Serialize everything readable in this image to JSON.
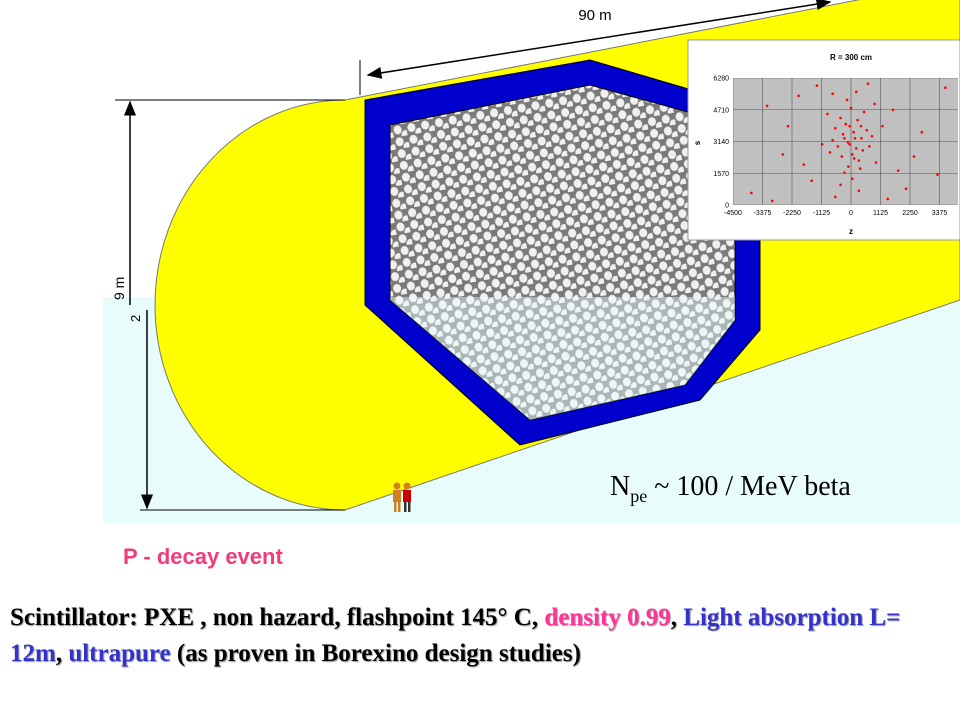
{
  "dimensions": {
    "length": "90 m",
    "height": "9 m",
    "partial": "2"
  },
  "npe_label": {
    "main": "N",
    "sub": "pe",
    "rest": " ~ 100 / MeV beta"
  },
  "event_label": "P - decay event",
  "description": {
    "segments": [
      {
        "text": "Scintillator: PXE ,  non hazard,  flashpoint 145° C, ",
        "color": "#000000"
      },
      {
        "text": "density 0.99",
        "color": "#ff3399"
      },
      {
        "text": ", ",
        "color": "#000000"
      },
      {
        "text": "Light absorption L= 12m",
        "color": "#3333cc"
      },
      {
        "text": ", ",
        "color": "#000000"
      },
      {
        "text": "ultrapure",
        "color": "#3333cc"
      },
      {
        "text": " (as proven in Borexino design studies)",
        "color": "#000000"
      }
    ]
  },
  "chart_data": {
    "type": "scatter",
    "title": "R = 300 cm",
    "x_label": "z",
    "y_label": "s",
    "color": "#ff0000",
    "x": [
      -120,
      200,
      -300,
      400,
      50,
      -500,
      600,
      -200,
      300,
      -700,
      100,
      -50,
      450,
      -350,
      250,
      -600,
      700,
      -100,
      150,
      -400,
      500,
      -250,
      350,
      0,
      -800,
      800,
      -150,
      200,
      -900,
      950,
      -1100,
      1200,
      -1500,
      1600,
      -2000,
      2100,
      -2600,
      2700,
      -3200,
      3300,
      -3800,
      3600,
      -1300,
      1400,
      -600,
      650,
      -2400,
      2400,
      -400,
      300,
      -3000,
      1800,
      -1800,
      900,
      -700,
      50,
      -50,
      120,
      -250,
      380
    ],
    "y": [
      3100,
      2800,
      3500,
      3300,
      2500,
      2900,
      3700,
      4000,
      2200,
      3200,
      3600,
      3000,
      2700,
      2400,
      4200,
      3800,
      2900,
      1900,
      3300,
      4300,
      4600,
      1600,
      1800,
      4800,
      2600,
      3400,
      5200,
      5600,
      4500,
      2100,
      3000,
      3900,
      1200,
      4700,
      5400,
      800,
      2500,
      3600,
      4900,
      1500,
      600,
      5800,
      5900,
      300,
      400,
      6000,
      3900,
      2400,
      1000,
      700,
      200,
      1700,
      2000,
      5000,
      5500,
      1300,
      3900,
      2300,
      3300,
      3900
    ],
    "xlim": [
      -4500,
      4500
    ],
    "ylim": [
      0,
      6280
    ],
    "xticks": [
      -4500,
      -3375,
      -2250,
      -1125,
      0,
      1125,
      2250,
      3375
    ],
    "yticks": [
      0,
      1570,
      3140,
      4710,
      6280
    ],
    "grid": true
  }
}
